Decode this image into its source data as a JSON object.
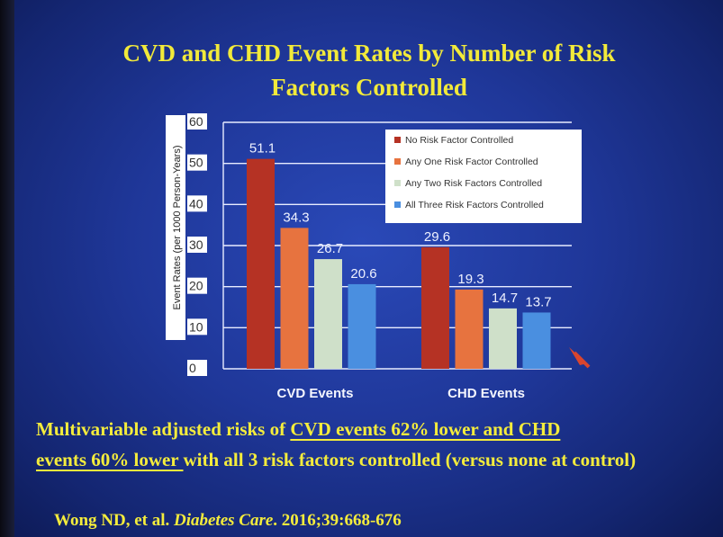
{
  "slide": {
    "title_line1": "CVD and CHD Event Rates by Number of  Risk",
    "title_line2": "Factors Controlled",
    "footer": {
      "part1": "Multivariable adjusted risks of ",
      "underlined1": "CVD events 62% lower and CHD",
      "underlined2": "events 60% lower ",
      "part2": "with all 3 risk factors controlled (versus none at control)"
    },
    "citation": {
      "authors": "Wong ND, et al. ",
      "journal": "Diabetes Care",
      "rest": ". 2016;39:668-676"
    }
  },
  "chart_data": {
    "type": "bar",
    "title": "",
    "xlabel": "",
    "ylabel": "Event Rates (per 1000 Person-Years)",
    "ylim": [
      0,
      60
    ],
    "yticks": [
      0,
      10,
      20,
      30,
      40,
      50,
      60
    ],
    "categories": [
      "CVD Events",
      "CHD Events"
    ],
    "series": [
      {
        "name": "No Risk Factor Controlled",
        "values": [
          51.1,
          29.6
        ],
        "labels": [
          "51.1",
          "29.6"
        ],
        "color": "#b53224"
      },
      {
        "name": "Any One Risk Factor Controlled",
        "values": [
          34.3,
          19.3
        ],
        "labels": [
          "34.3",
          "19.3"
        ],
        "color": "#e7733f"
      },
      {
        "name": "Any Two Risk Factors Controlled",
        "values": [
          26.7,
          14.7
        ],
        "labels": [
          "26.7",
          "14.7"
        ],
        "color": "#cfe0c9"
      },
      {
        "name": "All Three Risk Factors Controlled",
        "values": [
          20.6,
          13.7
        ],
        "labels": [
          "20.6",
          "13.7"
        ],
        "color": "#4a8fe0"
      }
    ],
    "grid": true,
    "legend": "top-right"
  }
}
